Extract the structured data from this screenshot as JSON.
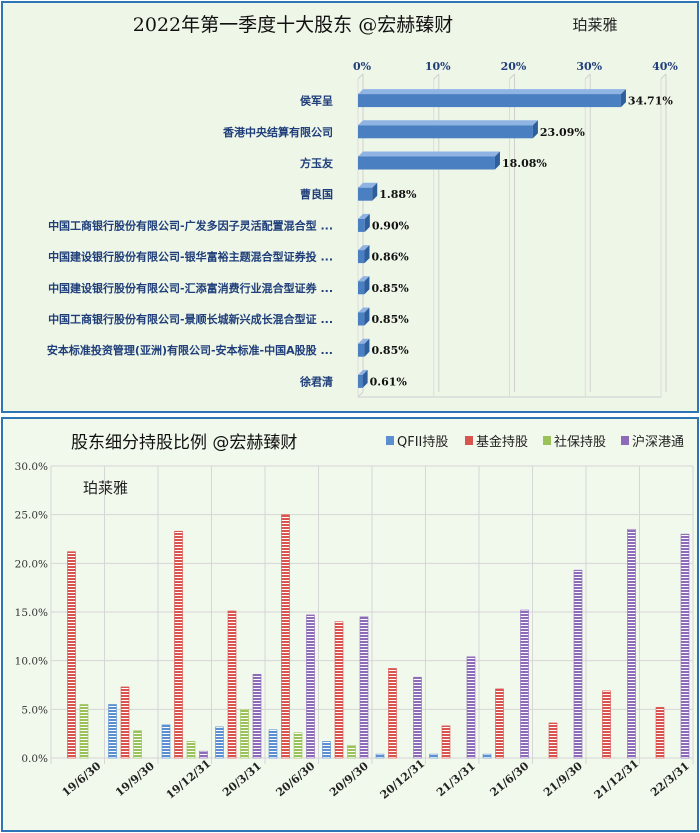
{
  "chart_data": [
    {
      "type": "bar",
      "orientation": "horizontal",
      "title": "2022年第一季度十大股东 @宏赫臻财",
      "brand": "珀莱雅",
      "categories": [
        "侯军呈",
        "香港中央结算有限公司",
        "方玉友",
        "曹良国",
        "中国工商银行股份有限公司-广发多因子灵活配置混合型 ...",
        "中国建设银行股份有限公司-银华富裕主题混合型证券投 ...",
        "中国建设银行股份有限公司-汇添富消费行业混合型证券 ...",
        "中国工商银行股份有限公司-景顺长城新兴成长混合型证 ...",
        "安本标准投资管理(亚洲)有限公司-安本标准-中国A股股 ...",
        "徐君清"
      ],
      "values": [
        34.71,
        23.09,
        18.08,
        1.88,
        0.9,
        0.86,
        0.85,
        0.85,
        0.85,
        0.61
      ],
      "value_labels": [
        "34.71%",
        "23.09%",
        "18.08%",
        "1.88%",
        "0.90%",
        "0.86%",
        "0.85%",
        "0.85%",
        "0.85%",
        "0.61%"
      ],
      "xlim": [
        0,
        40
      ],
      "xticks": [
        "0%",
        "10%",
        "20%",
        "30%",
        "40%"
      ],
      "grid": true,
      "bar_color": "#4a7fc1"
    },
    {
      "type": "bar",
      "orientation": "vertical",
      "title": "股东细分持股比例 @宏赫臻财",
      "brand": "珀莱雅",
      "categories": [
        "19/6/30",
        "19/9/30",
        "19/12/31",
        "20/3/31",
        "20/6/30",
        "20/9/30",
        "20/12/31",
        "21/3/31",
        "21/6/30",
        "21/9/30",
        "21/12/31",
        "22/3/31"
      ],
      "series": [
        {
          "name": "QFII持股",
          "color": "#5b8fd1",
          "values": [
            0,
            5.5,
            3.4,
            3.2,
            2.9,
            1.7,
            0.4,
            0.4,
            0.4,
            0,
            0,
            0
          ]
        },
        {
          "name": "基金持股",
          "color": "#d9534f",
          "values": [
            21.2,
            7.3,
            23.3,
            15.1,
            25.0,
            14.0,
            9.2,
            3.3,
            7.1,
            3.6,
            6.9,
            5.2
          ]
        },
        {
          "name": "社保持股",
          "color": "#9bc15a",
          "values": [
            5.5,
            2.8,
            1.7,
            5.0,
            2.6,
            1.3,
            0,
            0,
            0,
            0,
            0,
            0
          ]
        },
        {
          "name": "沪深港通",
          "color": "#8e6bb8",
          "values": [
            0,
            0,
            0.7,
            8.6,
            14.7,
            14.5,
            8.3,
            10.4,
            15.2,
            19.3,
            23.5,
            23.0
          ]
        }
      ],
      "ylim": [
        0,
        30
      ],
      "yticks": [
        "0.0%",
        "5.0%",
        "10.0%",
        "15.0%",
        "20.0%",
        "25.0%",
        "30.0%"
      ],
      "legend": "top-right",
      "grid": true
    }
  ]
}
